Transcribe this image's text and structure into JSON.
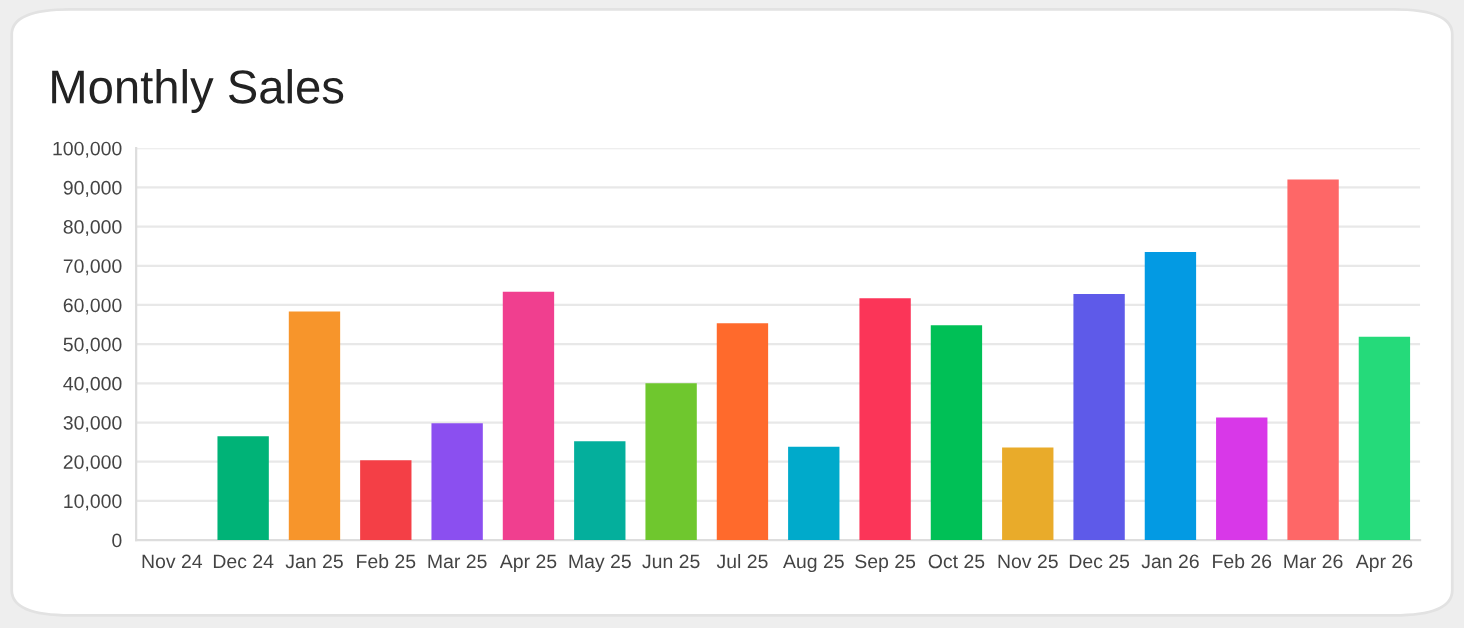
{
  "chart_data": {
    "type": "bar",
    "title": "Monthly Sales",
    "categories": [
      "Nov 24",
      "Dec 24",
      "Jan 25",
      "Feb 25",
      "Mar 25",
      "Apr 25",
      "May 25",
      "Jun 25",
      "Jul 25",
      "Aug 25",
      "Sep 25",
      "Oct 25",
      "Nov 25",
      "Dec 25",
      "Jan 26",
      "Feb 26",
      "Mar 26",
      "Apr 26"
    ],
    "values": [
      0,
      26500,
      58300,
      20400,
      29800,
      63400,
      25200,
      40000,
      55300,
      23800,
      61700,
      54800,
      23600,
      62800,
      73500,
      31300,
      92000,
      51900
    ],
    "colors": [
      "#00b377",
      "#00b377",
      "#f7952b",
      "#f43f46",
      "#8b4ff0",
      "#f03f8f",
      "#04af9c",
      "#6fc72e",
      "#ff6a2c",
      "#00aacb",
      "#fb3558",
      "#00c056",
      "#e9ab2a",
      "#5e5ae9",
      "#039ae3",
      "#d838e8",
      "#fe6767",
      "#25da7a"
    ],
    "ylim": [
      0,
      100000
    ],
    "yticks": [
      {
        "value": 0,
        "label": "0"
      },
      {
        "value": 10000,
        "label": "10,000"
      },
      {
        "value": 20000,
        "label": "20,000"
      },
      {
        "value": 30000,
        "label": "30,000"
      },
      {
        "value": 40000,
        "label": "40,000"
      },
      {
        "value": 50000,
        "label": "50,000"
      },
      {
        "value": 60000,
        "label": "60,000"
      },
      {
        "value": 70000,
        "label": "70,000"
      },
      {
        "value": 80000,
        "label": "80,000"
      },
      {
        "value": 90000,
        "label": "90,000"
      },
      {
        "value": 100000,
        "label": "100,000"
      }
    ],
    "grid": "y"
  }
}
